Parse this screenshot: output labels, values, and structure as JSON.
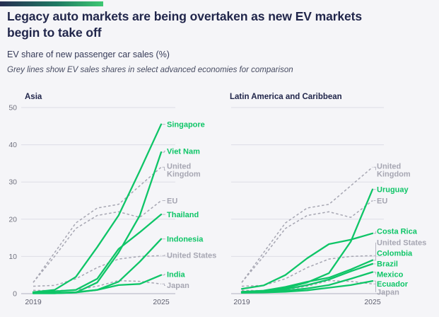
{
  "header": {
    "title_lines": [
      "Legacy auto markets are being overtaken as new EV markets",
      "begin to take off"
    ],
    "subtitle": "EV share of new passenger car sales (%)",
    "note": "Grey lines show EV sales shares in select advanced economies for comparison"
  },
  "colors": {
    "background": "#f5f5f8",
    "title_navy": "#21264b",
    "subtitle_color": "#363b58",
    "note_color": "#474c62",
    "focus_green": "#0ec567",
    "comparison_grey": "#a6a6b2",
    "grid_line": "#dddde6",
    "axis_line": "#bebeca",
    "tick_label": "#71727f",
    "year_label": "#5d5e6e",
    "leader_line": "#b6b6c2",
    "accent_gradient_start": "#272e52",
    "accent_gradient_mid": "#1f7a64",
    "accent_gradient_end": "#3ec873"
  },
  "chart_data": [
    {
      "type": "line",
      "title": "Asia",
      "x": [
        2019,
        2020,
        2021,
        2022,
        2023,
        2024,
        2025
      ],
      "xticks": [
        2019,
        2025
      ],
      "yticks": [
        0,
        10,
        20,
        30,
        40,
        50
      ],
      "ylim": [
        0,
        50
      ],
      "grid": true,
      "legend_position": "right-edge-labels",
      "series": [
        {
          "name": "United Kingdom",
          "label": [
            "United",
            "Kingdom"
          ],
          "role": "comparison",
          "style": "dashed",
          "values": [
            3,
            11,
            19,
            23,
            24,
            29,
            34
          ],
          "label_at": 33.2
        },
        {
          "name": "EU",
          "label": [
            "EU"
          ],
          "role": "comparison",
          "style": "dashed",
          "values": [
            3,
            10,
            17.5,
            21,
            22,
            20.5,
            25
          ],
          "label_at": 25
        },
        {
          "name": "United States",
          "label": [
            "United States"
          ],
          "role": "comparison",
          "style": "dashed",
          "values": [
            2,
            2.2,
            4,
            7,
            9.3,
            10,
            10.2
          ],
          "label_at": 10.3
        },
        {
          "name": "Japan",
          "label": [
            "Japan"
          ],
          "role": "comparison",
          "style": "dashed",
          "values": [
            0.9,
            0.8,
            1,
            2,
            3.5,
            3.3,
            2.6
          ],
          "label_at": 2.2
        },
        {
          "name": "Singapore",
          "label": [
            "Singapore"
          ],
          "role": "focus",
          "style": "solid",
          "values": [
            0.4,
            1,
            4.5,
            12.5,
            21,
            33,
            45.5
          ],
          "label_at": 45.5
        },
        {
          "name": "Viet Nam",
          "label": [
            "Viet Nam"
          ],
          "role": "focus",
          "style": "solid",
          "values": [
            0.1,
            0.1,
            0.3,
            3,
            11,
            21,
            38
          ],
          "label_at": 38.3
        },
        {
          "name": "Thailand",
          "label": [
            "Thailand"
          ],
          "role": "focus",
          "style": "solid",
          "values": [
            0.4,
            0.6,
            1,
            4,
            12,
            16.5,
            21.3
          ],
          "label_at": 21.3
        },
        {
          "name": "Indonesia",
          "label": [
            "Indonesia"
          ],
          "role": "focus",
          "style": "solid",
          "values": [
            0.1,
            0.1,
            0.3,
            1,
            3.2,
            8.6,
            14.7
          ],
          "label_at": 14.7
        },
        {
          "name": "India",
          "label": [
            "India"
          ],
          "role": "focus",
          "style": "solid",
          "values": [
            0.1,
            0.2,
            0.4,
            1,
            2.3,
            2.6,
            5
          ],
          "label_at": 5.2
        }
      ]
    },
    {
      "type": "line",
      "title": "Latin America and Caribbean",
      "x": [
        2019,
        2020,
        2021,
        2022,
        2023,
        2024,
        2025
      ],
      "xticks": [
        2019,
        2025
      ],
      "yticks": [
        0,
        10,
        20,
        30,
        40,
        50
      ],
      "ylim": [
        0,
        50
      ],
      "grid": true,
      "legend_position": "right-edge-labels",
      "series": [
        {
          "name": "United Kingdom",
          "label": [
            "United",
            "Kingdom"
          ],
          "role": "comparison",
          "style": "dashed",
          "values": [
            3,
            11,
            19,
            23,
            24,
            29,
            34
          ],
          "label_at": 33.2
        },
        {
          "name": "EU",
          "label": [
            "EU"
          ],
          "role": "comparison",
          "style": "dashed",
          "values": [
            3,
            10,
            17.5,
            21,
            22,
            20.5,
            25
          ],
          "label_at": 25
        },
        {
          "name": "United States",
          "label": [
            "United States"
          ],
          "role": "comparison",
          "style": "dashed",
          "values": [
            2,
            2.2,
            4,
            7,
            9.3,
            10,
            10.2
          ],
          "label_at": 13.7
        },
        {
          "name": "Japan",
          "label": [
            "Japan"
          ],
          "role": "comparison",
          "style": "dashed",
          "values": [
            0.9,
            0.8,
            1,
            2,
            3.5,
            3.3,
            2.6
          ],
          "label_at": 0.4
        },
        {
          "name": "Uruguay",
          "label": [
            "Uruguay"
          ],
          "role": "focus",
          "style": "solid",
          "values": [
            0.5,
            0.7,
            1.5,
            3,
            5.5,
            14,
            28
          ],
          "label_at": 28
        },
        {
          "name": "Costa Rica",
          "label": [
            "Costa Rica"
          ],
          "role": "focus",
          "style": "solid",
          "values": [
            1.3,
            2.2,
            5,
            9.5,
            13.3,
            14.5,
            16.2
          ],
          "label_at": 16.8
        },
        {
          "name": "Colombia",
          "label": [
            "Colombia"
          ],
          "role": "focus",
          "style": "solid",
          "values": [
            0.5,
            0.8,
            1.8,
            3.2,
            4.3,
            6.5,
            9
          ],
          "label_at": 10.9
        },
        {
          "name": "Brazil",
          "label": [
            "Brazil"
          ],
          "role": "focus",
          "style": "solid",
          "values": [
            0.4,
            0.6,
            1.2,
            2.3,
            3.8,
            6,
            8
          ],
          "label_at": 8
        },
        {
          "name": "Mexico",
          "label": [
            "Mexico"
          ],
          "role": "focus",
          "style": "solid",
          "values": [
            0.3,
            0.4,
            0.8,
            1.4,
            2.3,
            4,
            5.8
          ],
          "label_at": 5.2
        },
        {
          "name": "Ecuador",
          "label": [
            "Ecuador"
          ],
          "role": "focus",
          "style": "solid",
          "values": [
            0.2,
            0.3,
            0.5,
            0.9,
            1.6,
            2.3,
            3.4
          ],
          "label_at": 2.6
        }
      ]
    }
  ]
}
